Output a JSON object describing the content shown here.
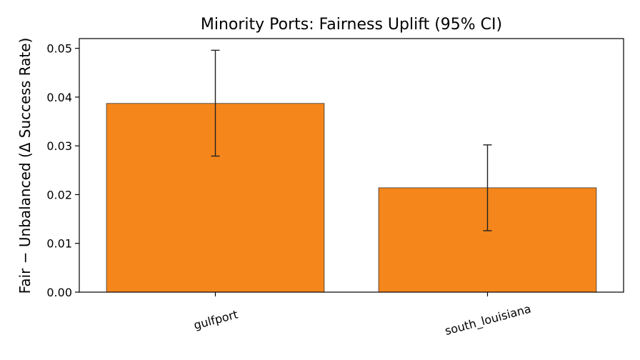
{
  "chart_data": {
    "type": "bar",
    "title": "Minority Ports: Fairness Uplift (95% CI)",
    "xlabel": "",
    "ylabel": "Fair − Unbalanced (Δ Success Rate)",
    "categories": [
      "gulfport",
      "south_louisiana"
    ],
    "values": [
      0.0387,
      0.0214
    ],
    "error_low": [
      0.0279,
      0.0126
    ],
    "error_high": [
      0.0496,
      0.0302
    ],
    "ylim": [
      0,
      0.052
    ],
    "yticks": [
      0.0,
      0.01,
      0.02,
      0.03,
      0.04,
      0.05
    ],
    "ytick_labels": [
      "0.00",
      "0.01",
      "0.02",
      "0.03",
      "0.04",
      "0.05"
    ],
    "bar_color": "#f5861b",
    "grid": false
  }
}
